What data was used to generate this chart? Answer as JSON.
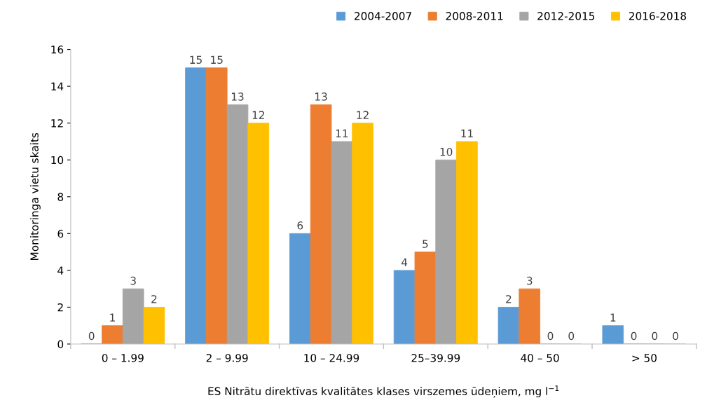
{
  "chart_data": {
    "type": "bar",
    "xlabel": "ES Nitrātu direktīvas kvalitātes klases virszemes ūdeņiem, mg l$^{−1}$",
    "ylabel": "Monitoringa vietu skaits",
    "categories": [
      "0 – 1.99",
      "2 – 9.99",
      "10 – 24.99",
      "25–39.99",
      "40 – 50",
      "> 50"
    ],
    "series": [
      {
        "name": "2004-2007",
        "color": "#5b9bd5",
        "values": [
          0,
          15,
          6,
          4,
          2,
          1
        ]
      },
      {
        "name": "2008-2011",
        "color": "#ed7d31",
        "values": [
          1,
          15,
          13,
          5,
          3,
          0
        ]
      },
      {
        "name": "2012-2015",
        "color": "#a5a5a5",
        "values": [
          3,
          13,
          11,
          10,
          0,
          0
        ]
      },
      {
        "name": "2016-2018",
        "color": "#ffc000",
        "values": [
          2,
          12,
          12,
          11,
          0,
          0
        ]
      }
    ],
    "ylim": [
      0,
      16
    ],
    "yticks": [
      0,
      2,
      4,
      6,
      8,
      10,
      12,
      14,
      16
    ],
    "data_labels": true,
    "legend": "top right",
    "grid": false
  }
}
